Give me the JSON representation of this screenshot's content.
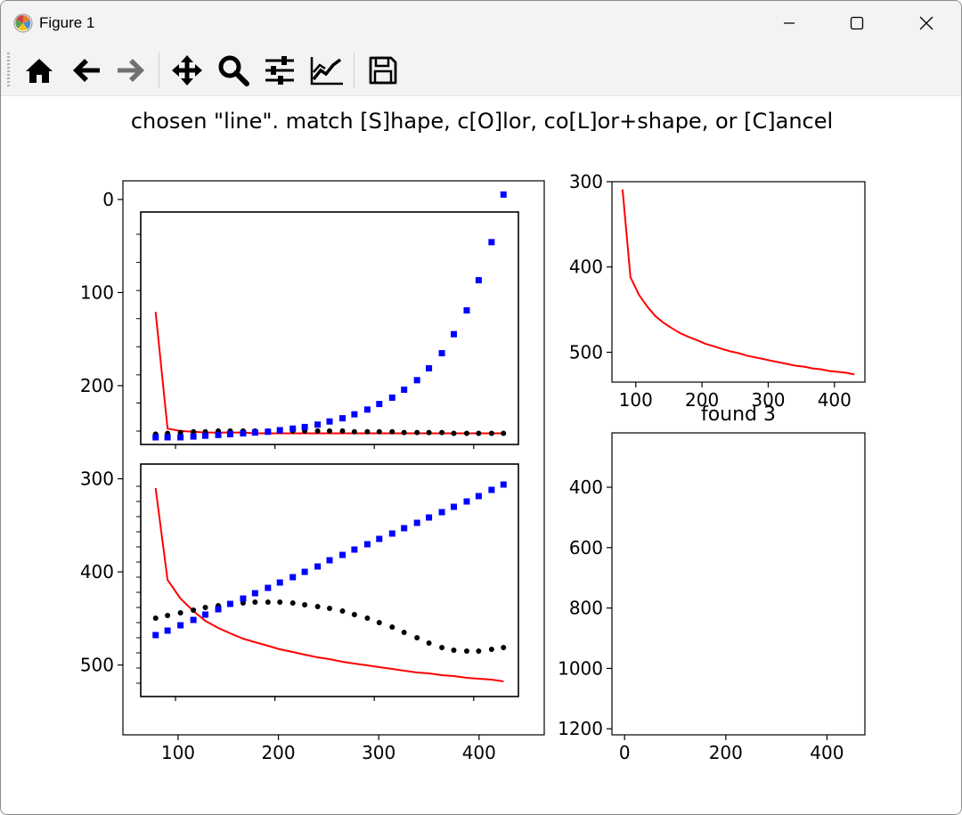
{
  "window": {
    "title": "Figure 1"
  },
  "toolbar": {
    "buttons": [
      "home-icon",
      "back-icon",
      "forward-icon",
      "pan-icon",
      "zoom-icon",
      "configure-subplots-icon",
      "edit-axis-icon",
      "save-icon"
    ]
  },
  "figure": {
    "suptitle": "chosen \"line\". match [S]hape, c[O]lor, co[L]or+shape, or [C]ancel"
  },
  "chart_data": [
    {
      "type": "line",
      "name": "main-axes",
      "xticks": [
        "100",
        "200",
        "300",
        "400"
      ],
      "yticks": [
        "0",
        "100",
        "200",
        "300",
        "400",
        "500"
      ],
      "xlim": [
        45,
        465
      ],
      "ylim": [
        575,
        -20
      ],
      "y_inverted": true
    },
    {
      "type": "line",
      "name": "inset-upper",
      "xlim": [
        65,
        445
      ],
      "series": [
        {
          "kind": "line",
          "color": "#ff0000",
          "x": [
            80,
            92,
            105,
            118,
            130,
            143,
            155,
            168,
            180,
            193,
            205,
            218,
            230,
            243,
            255,
            268,
            280,
            293,
            305,
            318,
            330,
            343,
            355,
            368,
            380,
            393,
            405,
            418,
            430
          ],
          "values": [
            100,
            247,
            250,
            251,
            252,
            252,
            252,
            252,
            253,
            253,
            253,
            253,
            253,
            253,
            253,
            253,
            253,
            253,
            253,
            253,
            253,
            253,
            253,
            253,
            253,
            253,
            253,
            253,
            253
          ]
        },
        {
          "kind": "dots",
          "color": "#000000",
          "x": [
            80,
            92,
            105,
            118,
            130,
            143,
            155,
            168,
            180,
            193,
            205,
            218,
            230,
            243,
            255,
            268,
            280,
            293,
            305,
            318,
            330,
            343,
            355,
            368,
            380,
            393,
            405,
            418,
            430
          ],
          "values": [
            254,
            253,
            252,
            251,
            251,
            250,
            250,
            250,
            250,
            250,
            250,
            250,
            250,
            250,
            250,
            250,
            251,
            251,
            251,
            251,
            252,
            252,
            252,
            252,
            253,
            253,
            253,
            253,
            253
          ]
        },
        {
          "kind": "squares",
          "color": "#0000ff",
          "x": [
            80,
            92,
            105,
            118,
            130,
            143,
            155,
            168,
            180,
            193,
            205,
            218,
            230,
            243,
            255,
            268,
            280,
            293,
            305,
            318,
            330,
            343,
            355,
            368,
            380,
            393,
            405,
            418,
            430
          ],
          "values": [
            258,
            258,
            258,
            257,
            256,
            255,
            254,
            253,
            252,
            251,
            249,
            247,
            245,
            242,
            238,
            234,
            229,
            223,
            216,
            208,
            198,
            186,
            171,
            152,
            128,
            98,
            60,
            12,
            -48
          ]
        }
      ]
    },
    {
      "type": "line",
      "name": "inset-lower",
      "xlim": [
        65,
        445
      ],
      "series": [
        {
          "kind": "line",
          "color": "#ff0000",
          "x": [
            80,
            92,
            105,
            118,
            130,
            143,
            155,
            168,
            180,
            193,
            205,
            218,
            230,
            243,
            255,
            268,
            280,
            293,
            305,
            318,
            330,
            343,
            355,
            368,
            380,
            393,
            405,
            418,
            430
          ],
          "values": [
            309,
            412,
            433,
            447,
            458,
            466,
            472,
            478,
            482,
            486,
            490,
            493,
            496,
            499,
            501,
            504,
            506,
            508,
            510,
            512,
            514,
            516,
            517,
            519,
            520,
            522,
            523,
            524,
            526
          ]
        },
        {
          "kind": "dots",
          "color": "#000000",
          "x": [
            80,
            92,
            105,
            118,
            130,
            143,
            155,
            168,
            180,
            193,
            205,
            218,
            230,
            243,
            255,
            268,
            280,
            293,
            305,
            318,
            330,
            343,
            355,
            368,
            380,
            393,
            405,
            418,
            430
          ],
          "values": [
            455,
            452,
            449,
            446,
            443,
            441,
            439,
            438,
            437,
            437,
            437,
            438,
            440,
            442,
            444,
            447,
            451,
            455,
            460,
            465,
            471,
            477,
            483,
            488,
            491,
            492,
            492,
            490,
            488
          ]
        },
        {
          "kind": "squares",
          "color": "#0000ff",
          "x": [
            80,
            92,
            105,
            118,
            130,
            143,
            155,
            168,
            180,
            193,
            205,
            218,
            230,
            243,
            255,
            268,
            280,
            293,
            305,
            318,
            330,
            343,
            355,
            368,
            380,
            393,
            405,
            418,
            430
          ],
          "values": [
            474,
            469,
            463,
            457,
            451,
            445,
            439,
            433,
            427,
            421,
            415,
            409,
            403,
            397,
            390,
            384,
            378,
            372,
            366,
            360,
            354,
            348,
            342,
            336,
            330,
            324,
            318,
            311,
            305
          ]
        }
      ]
    },
    {
      "type": "line",
      "name": "top-right",
      "xticks": [
        "100",
        "200",
        "300",
        "400"
      ],
      "yticks": [
        "300",
        "400",
        "500"
      ],
      "xlim": [
        64,
        446
      ],
      "ylim": [
        535,
        300
      ],
      "y_inverted": true,
      "series": [
        {
          "kind": "line",
          "color": "#ff0000",
          "x": [
            80,
            92,
            105,
            118,
            130,
            143,
            155,
            168,
            180,
            193,
            205,
            218,
            230,
            243,
            255,
            268,
            280,
            293,
            305,
            318,
            330,
            343,
            355,
            368,
            380,
            393,
            405,
            418,
            430
          ],
          "values": [
            309,
            412,
            433,
            447,
            458,
            466,
            472,
            478,
            482,
            486,
            490,
            493,
            496,
            499,
            501,
            504,
            506,
            508,
            510,
            512,
            514,
            516,
            517,
            519,
            520,
            522,
            523,
            524,
            526
          ]
        }
      ]
    },
    {
      "type": "scatter",
      "name": "bottom-right",
      "title": "found 3",
      "xticks": [
        "0",
        "200",
        "400"
      ],
      "yticks": [
        "400",
        "600",
        "800",
        "1000",
        "1200"
      ],
      "xlim": [
        -25,
        475
      ],
      "ylim": [
        1220,
        220
      ],
      "y_inverted": true,
      "series": []
    }
  ]
}
